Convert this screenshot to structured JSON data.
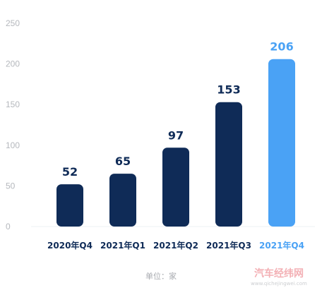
{
  "chart_data": {
    "type": "bar",
    "categories": [
      "2020年Q4",
      "2021年Q1",
      "2021年Q2",
      "2021年Q3",
      "2021年Q4"
    ],
    "values": [
      52,
      65,
      97,
      153,
      206
    ],
    "y_ticks": [
      0,
      50,
      100,
      150,
      200,
      250
    ],
    "ylim": [
      0,
      250
    ],
    "grid": false,
    "unit_label": "单位：家",
    "colors": {
      "bar": "#0f2b57",
      "highlight_bar": "#4aa2f5",
      "value_text": "#0f2b57",
      "highlight_value_text": "#4aa2f5",
      "category_text": "#0f2b57",
      "highlight_category_text": "#4aa2f5",
      "axis_line": "#eef0f3"
    },
    "highlight_index": 4
  },
  "watermark": {
    "text": "汽车经纬网",
    "url": "www.qichejingwei.com"
  }
}
